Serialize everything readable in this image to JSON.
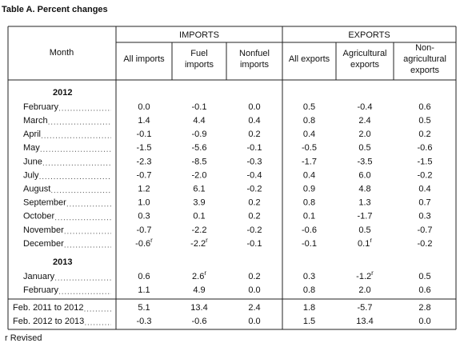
{
  "title": "Table A. Percent changes",
  "table": {
    "month_header": "Month",
    "groups": [
      "IMPORTS",
      "EXPORTS"
    ],
    "columns": [
      [
        "All imports"
      ],
      [
        "Fuel",
        "imports"
      ],
      [
        "Nonfuel",
        "imports"
      ],
      [
        "All exports"
      ],
      [
        "Agricultural",
        "exports"
      ],
      [
        "Non-",
        "agricultural",
        "exports"
      ]
    ],
    "sections": [
      {
        "year": "2012",
        "rows": [
          {
            "month": "February",
            "cells": [
              "0.0",
              "-0.1",
              "0.0",
              "0.5",
              "-0.4",
              "0.6"
            ]
          },
          {
            "month": "March",
            "cells": [
              "1.4",
              "4.4",
              "0.4",
              "0.8",
              "2.4",
              "0.5"
            ]
          },
          {
            "month": "April",
            "cells": [
              "-0.1",
              "-0.9",
              "0.2",
              "0.4",
              "2.0",
              "0.2"
            ]
          },
          {
            "month": "May",
            "cells": [
              "-1.5",
              "-5.6",
              "-0.1",
              "-0.5",
              "0.5",
              "-0.6"
            ]
          },
          {
            "month": "June",
            "cells": [
              "-2.3",
              "-8.5",
              "-0.3",
              "-1.7",
              "-3.5",
              "-1.5"
            ]
          },
          {
            "month": "July",
            "cells": [
              "-0.7",
              "-2.0",
              "-0.4",
              "0.4",
              "6.0",
              "-0.2"
            ]
          },
          {
            "month": "August",
            "cells": [
              "1.2",
              "6.1",
              "-0.2",
              "0.9",
              "4.8",
              "0.4"
            ]
          },
          {
            "month": "September",
            "cells": [
              "1.0",
              "3.9",
              "0.2",
              "0.8",
              "1.3",
              "0.7"
            ]
          },
          {
            "month": "October",
            "cells": [
              "0.3",
              "0.1",
              "0.2",
              "0.1",
              "-1.7",
              "0.3"
            ]
          },
          {
            "month": "November",
            "cells": [
              "-0.7",
              "-2.2",
              "-0.2",
              "-0.6",
              "0.5",
              "-0.7"
            ]
          },
          {
            "month": "December",
            "cells": [
              {
                "text": "-0.6",
                "mark": "r"
              },
              {
                "text": "-2.2",
                "mark": "r"
              },
              "-0.1",
              "-0.1",
              {
                "text": "0.1",
                "mark": "r"
              },
              "-0.2"
            ]
          }
        ]
      },
      {
        "year": "2013",
        "rows": [
          {
            "month": "January",
            "cells": [
              "0.6",
              {
                "text": "2.6",
                "mark": "r"
              },
              "0.2",
              "0.3",
              {
                "text": "-1.2",
                "mark": "r"
              },
              "0.5"
            ]
          },
          {
            "month": "February",
            "cells": [
              "1.1",
              "4.9",
              "0.0",
              "0.8",
              "2.0",
              "0.6"
            ]
          }
        ]
      }
    ],
    "summary": [
      {
        "month": "Feb. 2011 to 2012",
        "cells": [
          "5.1",
          "13.4",
          "2.4",
          "1.8",
          "-5.7",
          "2.8"
        ]
      },
      {
        "month": "Feb. 2012 to 2013",
        "cells": [
          "-0.3",
          "-0.6",
          "0.0",
          "1.5",
          "13.4",
          "0.0"
        ]
      }
    ]
  },
  "footnote": "r Revised"
}
